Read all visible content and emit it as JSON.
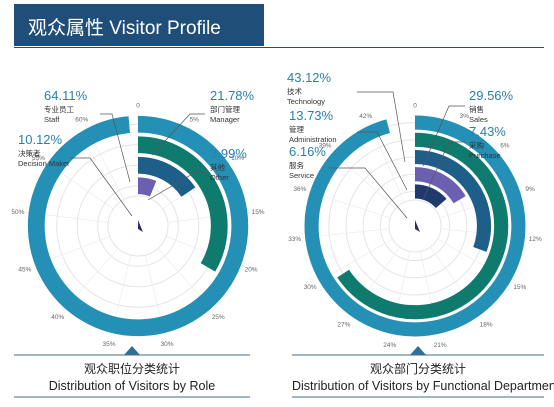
{
  "header": {
    "title": "观众属性 Visitor Profile"
  },
  "colors": {
    "teal": "#0f7a6e",
    "blue": "#2590b5",
    "navy": "#1e3a6e",
    "purple": "#6b5fb0",
    "lightgray": "#d9d9d9",
    "header": "#1f4e79"
  },
  "chart_data": [
    {
      "type": "radial_bar",
      "caption_zh": "观众职位分类统计",
      "caption_en": "Distribution of Visitors by Role",
      "tick_labels": [
        "0",
        "5%",
        "10%",
        "15%",
        "20%",
        "25%",
        "30%",
        "35%",
        "40%",
        "45%",
        "50%",
        "55%",
        "60%"
      ],
      "series": [
        {
          "pct": "64.11%",
          "zh": "专业员工",
          "en": "Staff",
          "value": 64.11,
          "color": "#2590b5"
        },
        {
          "pct": "21.78%",
          "zh": "部门管理",
          "en": "Manager",
          "value": 21.78,
          "color": "#0f7a6e"
        },
        {
          "pct": "10.12%",
          "zh": "决策者",
          "en": "Decision Maker",
          "value": 10.12,
          "color": "#1e5f8a"
        },
        {
          "pct": "3.99%",
          "zh": "其他",
          "en": "Other",
          "value": 3.99,
          "color": "#6b5fb0"
        }
      ]
    },
    {
      "type": "radial_bar",
      "caption_zh": "观众部门分类统计",
      "caption_en": "Distribution of Visitors by Functional Department",
      "tick_labels": [
        "0",
        "3%",
        "6%",
        "9%",
        "12%",
        "15%",
        "18%",
        "21%",
        "24%",
        "27%",
        "30%",
        "33%",
        "36%",
        "39%",
        "42%"
      ],
      "series": [
        {
          "pct": "43.12%",
          "zh": "技术",
          "en": "Technology",
          "value": 43.12,
          "color": "#2590b5"
        },
        {
          "pct": "29.56%",
          "zh": "销售",
          "en": "Sales",
          "value": 29.56,
          "color": "#0f7a6e"
        },
        {
          "pct": "13.73%",
          "zh": "管理",
          "en": "Administration",
          "value": 13.73,
          "color": "#1e5f8a"
        },
        {
          "pct": "7.43%",
          "zh": "采购",
          "en": "Purchase",
          "value": 7.43,
          "color": "#6b5fb0"
        },
        {
          "pct": "6.16%",
          "zh": "服务",
          "en": "Service",
          "value": 6.16,
          "color": "#1e3a6e"
        }
      ]
    }
  ]
}
